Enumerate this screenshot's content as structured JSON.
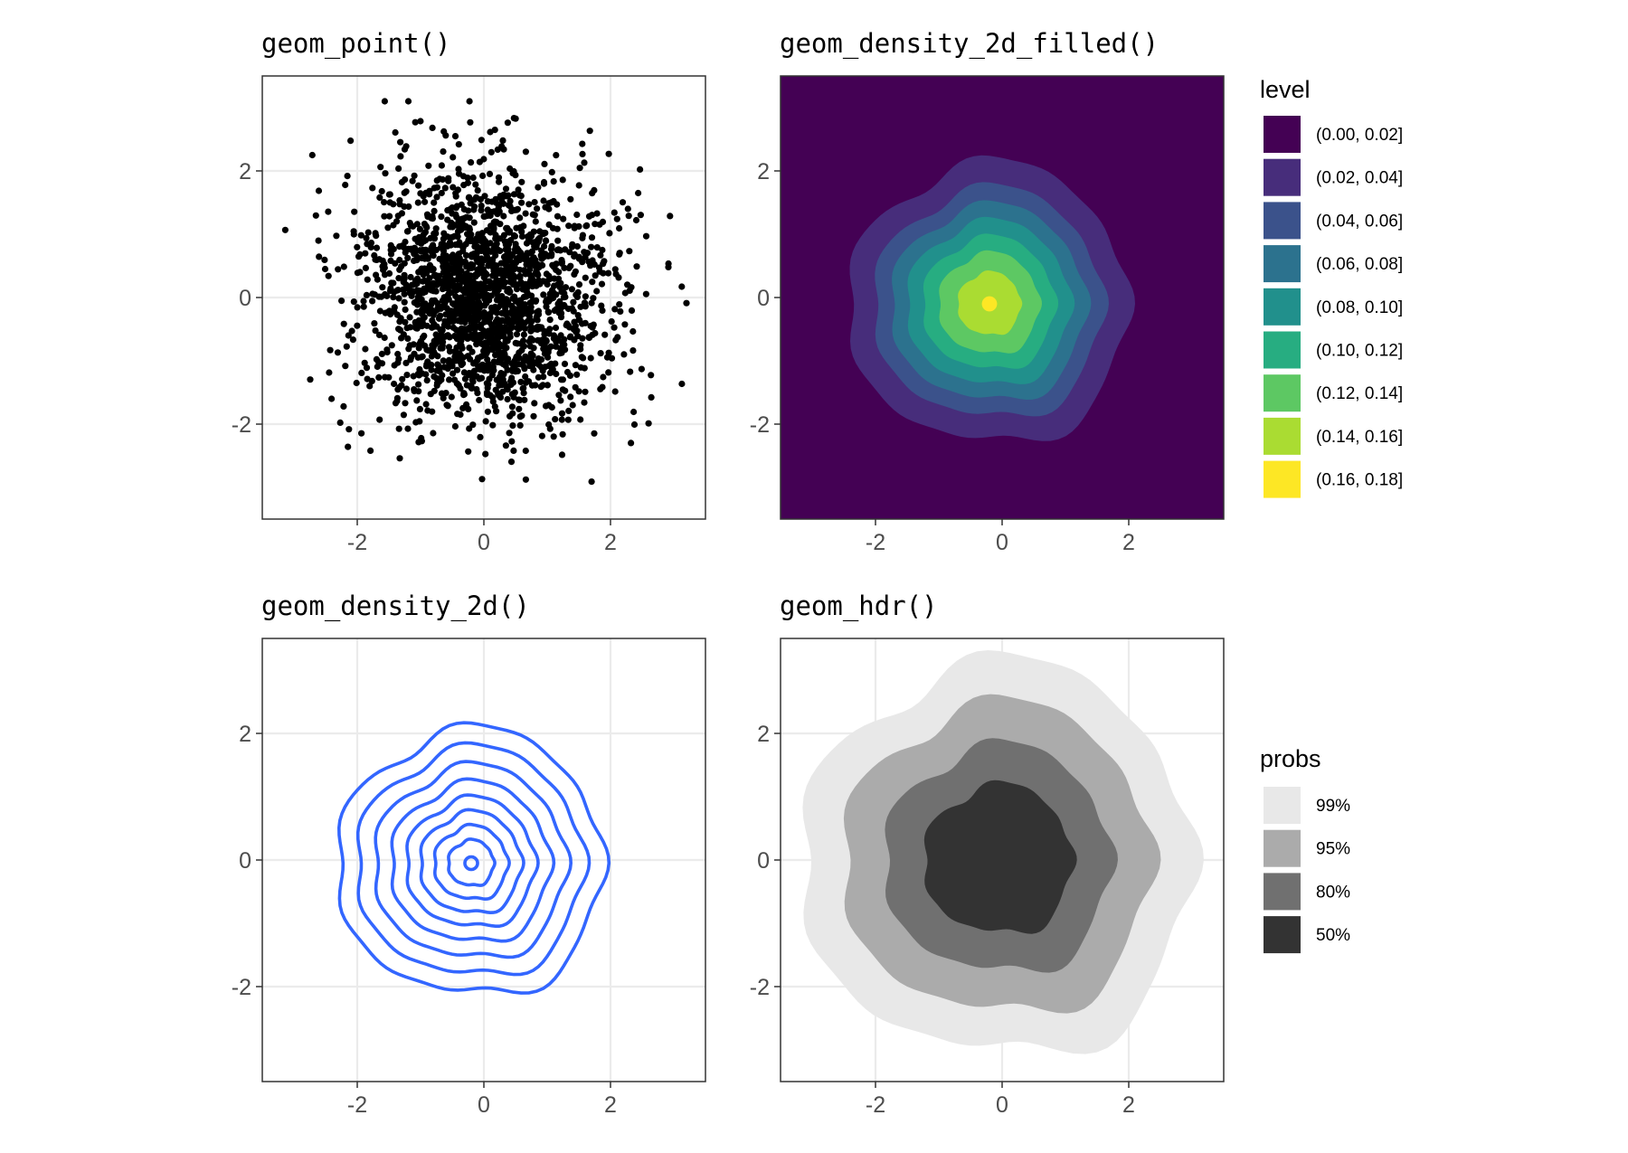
{
  "chart_data": [
    {
      "type": "scatter",
      "title": "geom_point()",
      "xlim": [
        -3.5,
        3.5
      ],
      "ylim": [
        -3.5,
        3.5
      ],
      "xticks": [
        -2,
        0,
        2
      ],
      "yticks": [
        -2,
        0,
        2
      ],
      "x_tick_labels": [
        "-2",
        "0",
        "2"
      ],
      "y_tick_labels": [
        "-2",
        "0",
        "2"
      ],
      "grid": true,
      "points_approx": {
        "count": 2000,
        "distribution": "standard bivariate normal",
        "center": [
          0,
          0
        ],
        "sd": [
          1,
          1
        ],
        "x_range": [
          -3.2,
          3.2
        ],
        "y_range": [
          -3.2,
          3.1
        ]
      },
      "point_color": "#000000"
    },
    {
      "type": "heatmap",
      "title": "geom_density_2d_filled()",
      "xlim": [
        -3.5,
        3.5
      ],
      "ylim": [
        -3.5,
        3.5
      ],
      "xticks": [
        -2,
        0,
        2
      ],
      "yticks": [
        -2,
        0,
        2
      ],
      "x_tick_labels": [
        "-2",
        "0",
        "2"
      ],
      "y_tick_labels": [
        "-2",
        "0",
        "2"
      ],
      "grid": false,
      "density_peak": [
        -0.2,
        -0.1
      ],
      "legend": {
        "title": "level",
        "position": "right",
        "entries": [
          {
            "label": "(0.00, 0.02]",
            "color": "#440154",
            "radius": null
          },
          {
            "label": "(0.02, 0.04]",
            "color": "#472D7B",
            "radius": 2.22
          },
          {
            "label": "(0.04, 0.06]",
            "color": "#3B528B",
            "radius": 1.82
          },
          {
            "label": "(0.06, 0.08]",
            "color": "#2C728E",
            "radius": 1.55
          },
          {
            "label": "(0.08, 0.10]",
            "color": "#21908C",
            "radius": 1.3
          },
          {
            "label": "(0.10, 0.12]",
            "color": "#27AD81",
            "radius": 1.05
          },
          {
            "label": "(0.12, 0.14]",
            "color": "#5DC863",
            "radius": 0.8
          },
          {
            "label": "(0.14, 0.16]",
            "color": "#AADC32",
            "radius": 0.5
          },
          {
            "label": "(0.16, 0.18]",
            "color": "#FDE725",
            "radius": 0.12
          }
        ]
      }
    },
    {
      "type": "line",
      "title": "geom_density_2d()",
      "xlim": [
        -3.5,
        3.5
      ],
      "ylim": [
        -3.5,
        3.5
      ],
      "xticks": [
        -2,
        0,
        2
      ],
      "yticks": [
        -2,
        0,
        2
      ],
      "x_tick_labels": [
        "-2",
        "0",
        "2"
      ],
      "y_tick_labels": [
        "-2",
        "0",
        "2"
      ],
      "grid": true,
      "line_color": "#3366FF",
      "contour_radii": [
        2.1,
        1.8,
        1.52,
        1.26,
        1.02,
        0.8,
        0.58,
        0.36,
        0.1
      ]
    },
    {
      "type": "area",
      "title": "geom_hdr()",
      "xlim": [
        -3.5,
        3.5
      ],
      "ylim": [
        -3.5,
        3.5
      ],
      "xticks": [
        -2,
        0,
        2
      ],
      "yticks": [
        -2,
        0,
        2
      ],
      "x_tick_labels": [
        "-2",
        "0",
        "2"
      ],
      "y_tick_labels": [
        "-2",
        "0",
        "2"
      ],
      "grid": true,
      "legend": {
        "title": "probs",
        "position": "right",
        "entries": [
          {
            "label": "99%",
            "color": "#E8E8E8",
            "radius": 3.1
          },
          {
            "label": "95%",
            "color": "#ABABAB",
            "radius": 2.45
          },
          {
            "label": "80%",
            "color": "#707070",
            "radius": 1.8
          },
          {
            "label": "50%",
            "color": "#333333",
            "radius": 1.18
          }
        ]
      }
    }
  ]
}
